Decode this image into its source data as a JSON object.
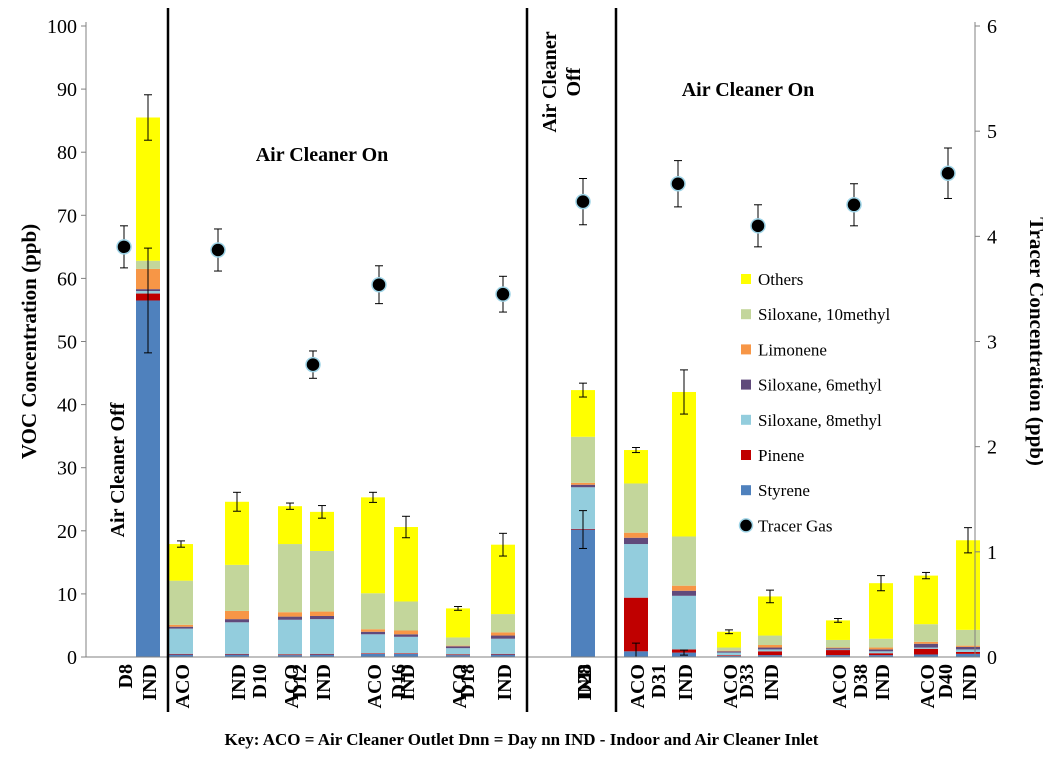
{
  "chart_data": {
    "type": "bar",
    "stacked": true,
    "ylabel": "VOC Concentration (ppb)",
    "y2label": "Tracer Concentration (ppb)",
    "ylim": [
      0,
      100
    ],
    "y2lim": [
      0,
      6
    ],
    "yticks": [
      0,
      10,
      20,
      30,
      40,
      50,
      60,
      70,
      80,
      90,
      100
    ],
    "y2ticks": [
      0,
      1,
      2,
      3,
      4,
      5,
      6
    ],
    "key": "Key:  ACO = Air Cleaner Outlet   Dnn = Day nn   IND - Indoor and Air Cleaner Inlet",
    "region_labels": [
      {
        "text": "Air Cleaner Off",
        "orientation": "vertical"
      },
      {
        "text": "Air Cleaner On",
        "orientation": "horizontal"
      },
      {
        "text": "Air Cleaner Off",
        "orientation": "vertical-two-line",
        "lines": [
          "Air Cleaner",
          "Off"
        ]
      },
      {
        "text": "Air Cleaner On",
        "orientation": "horizontal"
      }
    ],
    "groups": [
      {
        "day": "D8",
        "bars": [
          "IND"
        ]
      },
      {
        "day": "D10",
        "bars": [
          "ACO",
          "IND"
        ]
      },
      {
        "day": "D12",
        "bars": [
          "ACO",
          "IND"
        ]
      },
      {
        "day": "D16",
        "bars": [
          "ACO",
          "IND"
        ]
      },
      {
        "day": "D18",
        "bars": [
          "ACO",
          "IND"
        ]
      },
      {
        "day": "D28",
        "bars": [
          "IND"
        ]
      },
      {
        "day": "D31",
        "bars": [
          "ACO",
          "IND"
        ]
      },
      {
        "day": "D33",
        "bars": [
          "ACO",
          "IND"
        ]
      },
      {
        "day": "D38",
        "bars": [
          "ACO",
          "IND"
        ]
      },
      {
        "day": "D40",
        "bars": [
          "ACO",
          "IND"
        ]
      }
    ],
    "series": [
      {
        "name": "Styrene",
        "color": "#4f81bd",
        "values": [
          56.5,
          0.4,
          0.4,
          0.3,
          0.4,
          0.5,
          0.5,
          0.3,
          0.4,
          20.2,
          0.9,
          0.7,
          0.2,
          0.3,
          0.3,
          0.3,
          0.4,
          0.5
        ]
      },
      {
        "name": "Pinene",
        "color": "#c00000",
        "values": [
          1.1,
          0.1,
          0.1,
          0.1,
          0.1,
          0.1,
          0.1,
          0.1,
          0.1,
          0.1,
          8.5,
          0.5,
          0.1,
          0.6,
          0.8,
          0.3,
          0.9,
          0.3
        ]
      },
      {
        "name": "Siloxane, 8methyl",
        "color": "#93cddd",
        "values": [
          0.4,
          4.0,
          5.0,
          5.5,
          5.5,
          3.0,
          2.6,
          1.0,
          2.4,
          6.6,
          8.5,
          8.5,
          0.4,
          0.3,
          0.1,
          0.3,
          0.2,
          0.4
        ]
      },
      {
        "name": "Siloxane, 6methyl",
        "color": "#604a7b",
        "values": [
          0.3,
          0.3,
          0.5,
          0.5,
          0.5,
          0.4,
          0.4,
          0.3,
          0.5,
          0.4,
          1.0,
          0.8,
          0.2,
          0.3,
          0.2,
          0.3,
          0.6,
          0.4
        ]
      },
      {
        "name": "Limonene",
        "color": "#f79646",
        "values": [
          3.2,
          0.3,
          1.3,
          0.7,
          0.7,
          0.4,
          0.6,
          0.1,
          0.5,
          0.3,
          0.8,
          0.8,
          0.1,
          0.4,
          0.1,
          0.3,
          0.3,
          0.2
        ]
      },
      {
        "name": "Siloxane, 10methyl",
        "color": "#c3d69b",
        "values": [
          1.3,
          7.0,
          7.3,
          10.8,
          9.6,
          5.7,
          4.6,
          1.3,
          2.9,
          7.3,
          7.8,
          7.8,
          0.5,
          1.5,
          1.2,
          1.4,
          2.8,
          2.5
        ]
      },
      {
        "name": "Others",
        "color": "#ffff00",
        "values": [
          22.7,
          5.8,
          10.0,
          6.0,
          6.2,
          15.2,
          11.8,
          4.6,
          11.0,
          7.4,
          5.3,
          22.9,
          2.5,
          6.2,
          3.1,
          8.8,
          7.7,
          14.2
        ]
      }
    ],
    "bar_labels": [
      "IND",
      "ACO",
      "IND",
      "ACO",
      "IND",
      "ACO",
      "IND",
      "ACO",
      "IND",
      "IND",
      "ACO",
      "IND",
      "ACO",
      "IND",
      "ACO",
      "IND",
      "ACO",
      "IND"
    ],
    "error_bars_total": [
      3.6,
      0.5,
      1.5,
      0.5,
      1.0,
      0.8,
      1.7,
      0.3,
      1.8,
      1.1,
      0.4,
      3.5,
      0.3,
      1.0,
      0.3,
      1.2,
      0.5,
      2.0
    ],
    "error_bars_base": [
      8.3,
      0,
      0,
      0,
      0,
      0,
      0,
      0,
      0,
      3.0,
      1.3,
      0.4,
      0,
      0,
      0,
      0,
      0,
      0
    ],
    "tracer_gas": {
      "name": "Tracer Gas",
      "color": "#000000",
      "values": [
        3.9,
        3.87,
        2.78,
        3.54,
        3.45,
        4.33,
        4.5,
        4.1,
        4.3,
        4.6
      ],
      "error": [
        0.2,
        0.2,
        0.13,
        0.18,
        0.17,
        0.22,
        0.22,
        0.2,
        0.2,
        0.24
      ]
    },
    "legend_position": "center-right",
    "grid": false
  }
}
